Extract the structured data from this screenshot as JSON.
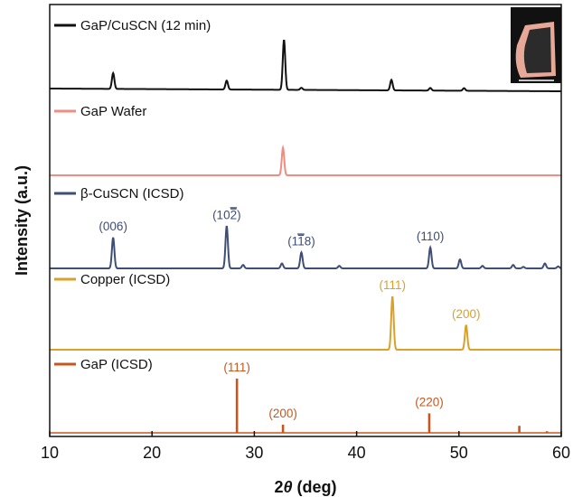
{
  "chart_data": {
    "type": "line",
    "xlabel": "2θ (deg)",
    "xlabel_prefix": "2",
    "xlabel_var": "θ",
    "xlabel_suffix": " (deg)",
    "ylabel": "Intensity (a.u.)",
    "xlim": [
      10,
      60
    ],
    "x_ticks": [
      10,
      20,
      30,
      40,
      50,
      60
    ],
    "grid": false,
    "legend": "per-panel top-left",
    "panels": [
      {
        "name": "GaP/CuSCN (12 min)",
        "color": "#111111",
        "style": "line",
        "baseline_slope": 0.012,
        "peaks": [
          {
            "x": 16.2,
            "h": 0.3
          },
          {
            "x": 27.3,
            "h": 0.17
          },
          {
            "x": 32.9,
            "h": 0.95
          },
          {
            "x": 34.6,
            "h": 0.04
          },
          {
            "x": 43.4,
            "h": 0.2
          },
          {
            "x": 47.2,
            "h": 0.05
          },
          {
            "x": 50.5,
            "h": 0.05
          }
        ]
      },
      {
        "name": "GaP Wafer",
        "color": "#F08C80",
        "style": "line",
        "peaks": [
          {
            "x": 32.8,
            "h": 0.95
          }
        ]
      },
      {
        "name": "β-CuSCN (ICSD)",
        "color": "#3E4E74",
        "style": "line",
        "peaks": [
          {
            "x": 16.2,
            "h": 0.62,
            "label": "(006)"
          },
          {
            "x": 27.3,
            "h": 0.85,
            "label": "(10̅22)",
            "label_text": "(10",
            "label_bar": "2",
            "label_end": ")"
          },
          {
            "x": 28.9,
            "h": 0.07
          },
          {
            "x": 32.7,
            "h": 0.1
          },
          {
            "x": 34.6,
            "h": 0.32,
            "label": "(1̅8)",
            "label_text": "(1",
            "label_bar": "1",
            "label_end": "8)"
          },
          {
            "x": 38.3,
            "h": 0.05
          },
          {
            "x": 47.2,
            "h": 0.42,
            "label": "(110)"
          },
          {
            "x": 50.1,
            "h": 0.18
          },
          {
            "x": 52.3,
            "h": 0.05
          },
          {
            "x": 55.3,
            "h": 0.07
          },
          {
            "x": 56.3,
            "h": 0.03
          },
          {
            "x": 58.4,
            "h": 0.1
          },
          {
            "x": 59.7,
            "h": 0.04
          }
        ]
      },
      {
        "name": "Copper (ICSD)",
        "color": "#D9A12A",
        "style": "line",
        "peaks": [
          {
            "x": 43.5,
            "h": 0.98,
            "label": "(111)"
          },
          {
            "x": 50.7,
            "h": 0.45,
            "label": "(200)"
          }
        ]
      },
      {
        "name": "GaP (ICSD)",
        "color": "#C8561C",
        "style": "stick",
        "peaks": [
          {
            "x": 28.3,
            "h": 1.0,
            "label": "(111)"
          },
          {
            "x": 32.8,
            "h": 0.15,
            "label": "(200)"
          },
          {
            "x": 47.1,
            "h": 0.36,
            "label": "(220)"
          },
          {
            "x": 55.9,
            "h": 0.13
          },
          {
            "x": 58.6,
            "h": 0.03
          }
        ]
      }
    ]
  },
  "inset": {
    "frame_color": "#111111",
    "sample_color": "#E8A898",
    "dark_color": "#2B2B2B"
  }
}
